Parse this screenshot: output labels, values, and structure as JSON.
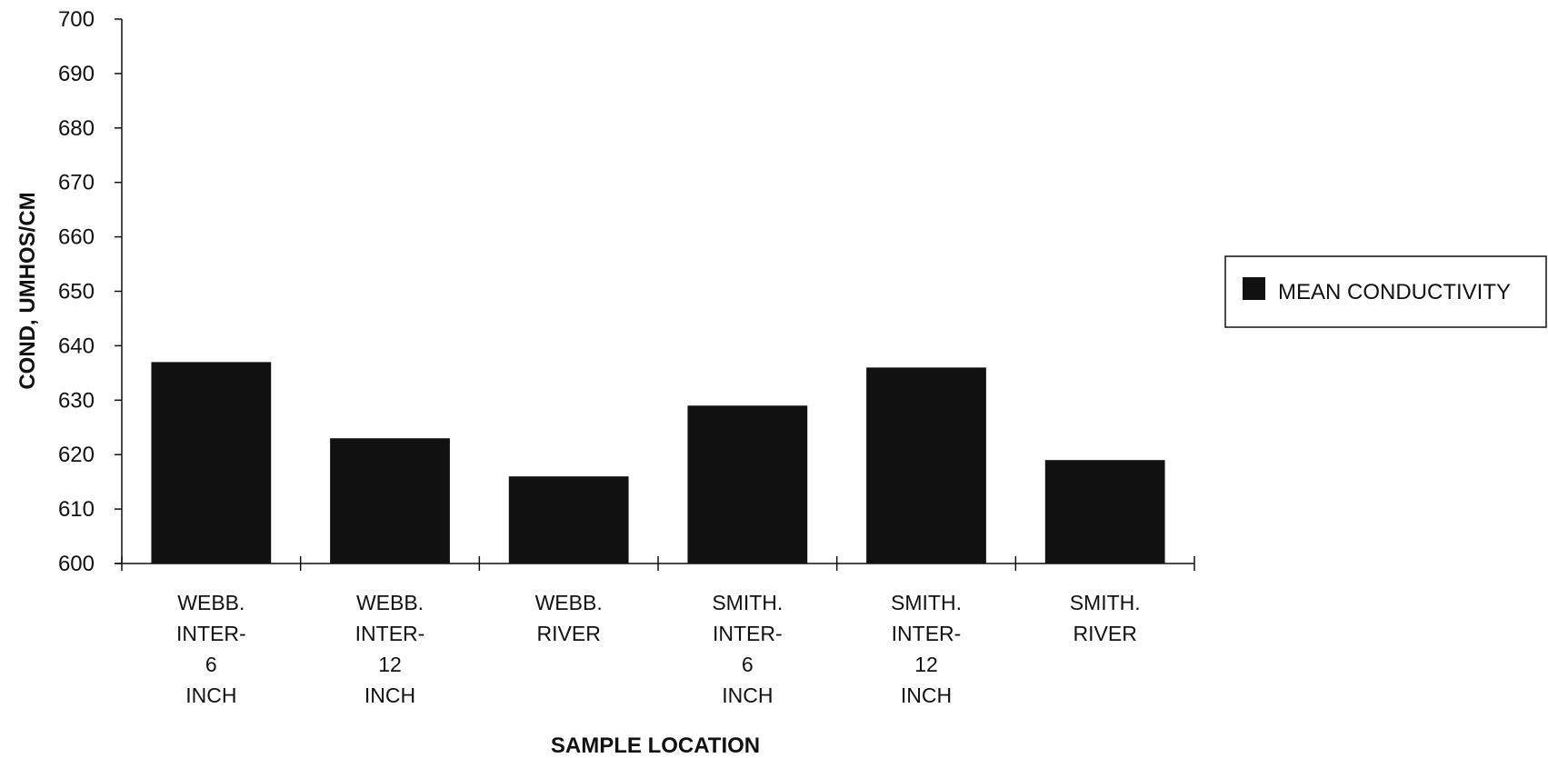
{
  "chart_data": {
    "type": "bar",
    "categories": [
      [
        "WEBB.",
        "INTER-",
        "6",
        "INCH"
      ],
      [
        "WEBB.",
        "INTER-",
        "12",
        "INCH"
      ],
      [
        "WEBB.",
        "RIVER"
      ],
      [
        "SMITH.",
        "INTER-",
        "6",
        "INCH"
      ],
      [
        "SMITH.",
        "INTER-",
        "12",
        "INCH"
      ],
      [
        "SMITH.",
        "RIVER"
      ]
    ],
    "series": [
      {
        "name": "MEAN CONDUCTIVITY",
        "values": [
          637,
          623,
          616,
          629,
          636,
          619
        ],
        "color": "#111111"
      }
    ],
    "title": "",
    "xlabel": "SAMPLE LOCATION",
    "ylabel": "COND, UMHOS/CM",
    "ylim": [
      600,
      700
    ],
    "yticks": [
      600,
      610,
      620,
      630,
      640,
      650,
      660,
      670,
      680,
      690,
      700
    ],
    "grid": false,
    "legend": "right"
  }
}
